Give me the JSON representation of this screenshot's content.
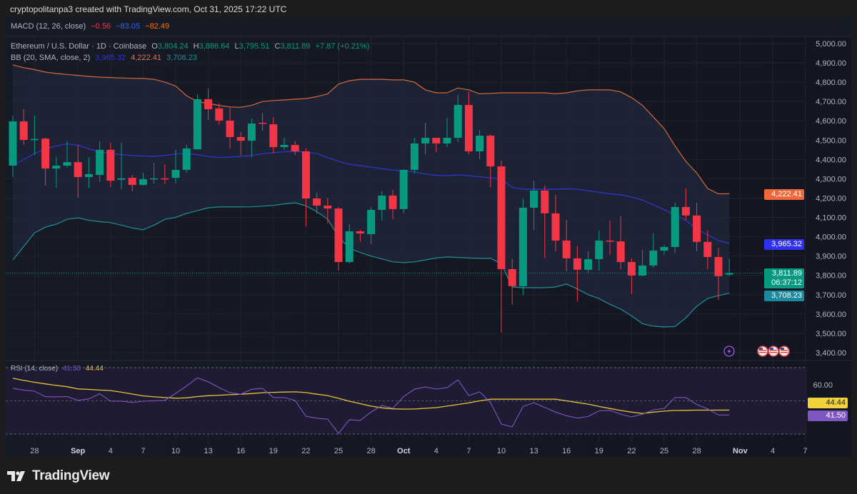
{
  "attribution": "cryptopolitanpa3 created with TradingView.com, Oct 31, 2025 17:22 UTC",
  "macd_legend": {
    "label": "MACD (12, 26, close)",
    "macd": "−0.56",
    "signal": "−83.05",
    "hist": "−82.49"
  },
  "symbol_legend": {
    "label": "Ethereum / U.S. Dollar · 1D · Coinbase",
    "o_label": "O",
    "o": "3,804.24",
    "h_label": "H",
    "h": "3,886.64",
    "l_label": "L",
    "l": "3,795.51",
    "c_label": "C",
    "c": "3,811.89",
    "change": "+7.87 (+0.21%)"
  },
  "bb_legend": {
    "label": "BB (20, SMA, close, 2)",
    "basis": "3,965.32",
    "upper": "4,222.41",
    "lower": "3,708.23"
  },
  "rsi_legend": {
    "label": "RSI (14, close)",
    "rsi": "41.50",
    "ma": "44.44"
  },
  "price_badges": {
    "upper": "4,222.41",
    "basis": "3,965.32",
    "last": "3,811.89",
    "countdown": "06:37:12",
    "lower": "3,708.23"
  },
  "rsi_badges": {
    "ma": "44.44",
    "rsi": "41.50"
  },
  "rsi_axis_label": "60.00",
  "logo_text": "TradingView",
  "colors": {
    "up": "#089981",
    "down": "#f23645",
    "bb_upper": "#d2693f",
    "bb_basis": "#3434d8",
    "bb_lower": "#1f8f97",
    "rsi": "#7e57c2",
    "rsi_ma": "#e5c33a"
  },
  "icons": [
    "lightning-icon",
    "us-flag-icon",
    "us-flag-icon",
    "us-flag-icon"
  ],
  "chart_data": {
    "type": "candlestick",
    "title": "Ethereum / U.S. Dollar · 1D · Coinbase",
    "ylim": [
      3400,
      5000
    ],
    "y_ticks": [
      "5,000.00",
      "4,900.00",
      "4,800.00",
      "4,700.00",
      "4,600.00",
      "4,500.00",
      "4,400.00",
      "4,300.00",
      "4,200.00",
      "4,100.00",
      "4,000.00",
      "3,900.00",
      "3,800.00",
      "3,700.00",
      "3,600.00",
      "3,500.00",
      "3,400.00"
    ],
    "x_ticks": [
      {
        "label": "28",
        "day": 2
      },
      {
        "label": "Sep",
        "day": 6
      },
      {
        "label": "4",
        "day": 9
      },
      {
        "label": "7",
        "day": 12
      },
      {
        "label": "10",
        "day": 15
      },
      {
        "label": "13",
        "day": 18
      },
      {
        "label": "16",
        "day": 21
      },
      {
        "label": "19",
        "day": 24
      },
      {
        "label": "22",
        "day": 27
      },
      {
        "label": "25",
        "day": 30
      },
      {
        "label": "28",
        "day": 33
      },
      {
        "label": "Oct",
        "day": 36
      },
      {
        "label": "4",
        "day": 39
      },
      {
        "label": "7",
        "day": 42
      },
      {
        "label": "10",
        "day": 45
      },
      {
        "label": "13",
        "day": 48
      },
      {
        "label": "16",
        "day": 51
      },
      {
        "label": "19",
        "day": 54
      },
      {
        "label": "22",
        "day": 57
      },
      {
        "label": "25",
        "day": 60
      },
      {
        "label": "28",
        "day": 63
      },
      {
        "label": "Nov",
        "day": 67
      },
      {
        "label": "4",
        "day": 70
      },
      {
        "label": "7",
        "day": 73
      }
    ],
    "ohlc": [
      [
        4368,
        4627,
        4309,
        4597
      ],
      [
        4597,
        4660,
        4475,
        4501
      ],
      [
        4500,
        4627,
        4424,
        4506
      ],
      [
        4508,
        4512,
        4265,
        4353
      ],
      [
        4353,
        4412,
        4253,
        4368
      ],
      [
        4368,
        4494,
        4357,
        4386
      ],
      [
        4386,
        4475,
        4202,
        4309
      ],
      [
        4309,
        4412,
        4253,
        4324
      ],
      [
        4320,
        4494,
        4283,
        4450
      ],
      [
        4450,
        4487,
        4257,
        4290
      ],
      [
        4295,
        4487,
        4246,
        4302
      ],
      [
        4305,
        4320,
        4235,
        4268
      ],
      [
        4268,
        4331,
        4265,
        4298
      ],
      [
        4298,
        4383,
        4276,
        4302
      ],
      [
        4302,
        4375,
        4272,
        4300
      ],
      [
        4305,
        4450,
        4276,
        4346
      ],
      [
        4346,
        4475,
        4331,
        4457
      ],
      [
        4453,
        4738,
        4450,
        4712
      ],
      [
        4712,
        4767,
        4605,
        4660
      ],
      [
        4664,
        4690,
        4579,
        4601
      ],
      [
        4601,
        4671,
        4457,
        4516
      ],
      [
        4516,
        4542,
        4420,
        4497
      ],
      [
        4497,
        4612,
        4412,
        4586
      ],
      [
        4590,
        4641,
        4549,
        4586
      ],
      [
        4582,
        4619,
        4431,
        4464
      ],
      [
        4464,
        4512,
        4450,
        4475
      ],
      [
        4475,
        4497,
        4424,
        4442
      ],
      [
        4442,
        4457,
        4054,
        4198
      ],
      [
        4198,
        4228,
        4117,
        4161
      ],
      [
        4161,
        4202,
        4069,
        4146
      ],
      [
        4146,
        4154,
        3825,
        3869
      ],
      [
        3869,
        4065,
        3862,
        4028
      ],
      [
        4028,
        4036,
        3973,
        4017
      ],
      [
        4013,
        4154,
        3962,
        4139
      ],
      [
        4139,
        4235,
        4084,
        4213
      ],
      [
        4213,
        4243,
        4091,
        4143
      ],
      [
        4143,
        4350,
        4121,
        4346
      ],
      [
        4346,
        4512,
        4327,
        4483
      ],
      [
        4483,
        4590,
        4427,
        4512
      ],
      [
        4512,
        4512,
        4438,
        4483
      ],
      [
        4483,
        4616,
        4464,
        4512
      ],
      [
        4512,
        4734,
        4490,
        4682
      ],
      [
        4682,
        4749,
        4427,
        4442
      ],
      [
        4442,
        4553,
        4401,
        4523
      ],
      [
        4523,
        4531,
        4257,
        4364
      ],
      [
        4364,
        4394,
        3504,
        3832
      ],
      [
        3832,
        3884,
        3648,
        3744
      ],
      [
        3744,
        4198,
        3696,
        4150
      ],
      [
        4150,
        4291,
        4036,
        4239
      ],
      [
        4239,
        4265,
        3888,
        4121
      ],
      [
        4121,
        4217,
        3925,
        3980
      ],
      [
        3980,
        4087,
        3821,
        3888
      ],
      [
        3888,
        3951,
        3666,
        3829
      ],
      [
        3829,
        3925,
        3814,
        3884
      ],
      [
        3884,
        4032,
        3825,
        3980
      ],
      [
        3980,
        4084,
        3906,
        3976
      ],
      [
        3976,
        4106,
        3832,
        3869
      ],
      [
        3869,
        3888,
        3703,
        3799
      ],
      [
        3799,
        3932,
        3796,
        3851
      ],
      [
        3851,
        4017,
        3840,
        3928
      ],
      [
        3928,
        3958,
        3906,
        3947
      ],
      [
        3947,
        4176,
        3914,
        4154
      ],
      [
        4154,
        4250,
        4087,
        4110
      ],
      [
        4110,
        4176,
        3925,
        3973
      ],
      [
        3973,
        4032,
        3832,
        3895
      ],
      [
        3895,
        3943,
        3674,
        3796
      ],
      [
        3804,
        3887,
        3796,
        3812
      ]
    ],
    "bb_upper": [
      4890,
      4875,
      4865,
      4852,
      4845,
      4840,
      4835,
      4830,
      4826,
      4824,
      4822,
      4820,
      4819,
      4815,
      4800,
      4780,
      4730,
      4700,
      4690,
      4680,
      4672,
      4670,
      4680,
      4700,
      4705,
      4708,
      4712,
      4715,
      4725,
      4740,
      4790,
      4808,
      4815,
      4815,
      4815,
      4812,
      4812,
      4800,
      4760,
      4745,
      4745,
      4770,
      4760,
      4740,
      4742,
      4745,
      4745,
      4745,
      4745,
      4745,
      4740,
      4745,
      4755,
      4760,
      4760,
      4760,
      4750,
      4720,
      4680,
      4620,
      4560,
      4470,
      4390,
      4330,
      4250,
      4222,
      4222.41
    ],
    "bb_basis": [
      4370,
      4400,
      4430,
      4455,
      4470,
      4480,
      4475,
      4455,
      4440,
      4430,
      4425,
      4420,
      4418,
      4416,
      4420,
      4428,
      4432,
      4425,
      4415,
      4410,
      4412,
      4416,
      4420,
      4430,
      4435,
      4440,
      4442,
      4438,
      4430,
      4410,
      4390,
      4375,
      4368,
      4360,
      4352,
      4345,
      4340,
      4335,
      4325,
      4318,
      4316,
      4320,
      4316,
      4310,
      4305,
      4300,
      4255,
      4246,
      4246,
      4246,
      4246,
      4248,
      4246,
      4238,
      4230,
      4222,
      4217,
      4205,
      4190,
      4165,
      4140,
      4115,
      4085,
      4040,
      4010,
      3980,
      3965.32
    ],
    "bb_lower": [
      3880,
      3950,
      4020,
      4050,
      4065,
      4090,
      4098,
      4085,
      4078,
      4073,
      4060,
      4045,
      4036,
      4060,
      4090,
      4100,
      4121,
      4135,
      4150,
      4154,
      4154,
      4154,
      4155,
      4158,
      4162,
      4170,
      4176,
      4160,
      4130,
      4091,
      4000,
      3940,
      3918,
      3900,
      3885,
      3870,
      3866,
      3870,
      3880,
      3890,
      3895,
      3893,
      3890,
      3888,
      3888,
      3860,
      3740,
      3736,
      3736,
      3736,
      3740,
      3755,
      3730,
      3700,
      3680,
      3650,
      3625,
      3590,
      3550,
      3537,
      3533,
      3535,
      3580,
      3640,
      3680,
      3695,
      3708.23
    ],
    "last_price": 3811.89,
    "rsi": {
      "ylim": [
        30,
        70
      ],
      "rsi": [
        57.5,
        56.5,
        55.8,
        52.5,
        52.4,
        52.6,
        50.3,
        51.2,
        54.3,
        49.8,
        49.8,
        49,
        49.8,
        50,
        50.3,
        54.5,
        59,
        63.8,
        61.5,
        58,
        54.9,
        54,
        57,
        57.5,
        52,
        52,
        50.2,
        40.7,
        39.5,
        39,
        30.4,
        38.6,
        38.2,
        43.3,
        47.2,
        45.5,
        52.6,
        57,
        58.4,
        57.1,
        57.9,
        62.7,
        53.2,
        55.4,
        49,
        36,
        34.3,
        46.6,
        48.9,
        46,
        43.2,
        41,
        39.6,
        40.6,
        44,
        44.3,
        42,
        40.3,
        42,
        44.6,
        45.4,
        52,
        52,
        47.8,
        45.2,
        41.5,
        41.5
      ],
      "ma": [
        63.6,
        62.3,
        61.2,
        60.2,
        59.3,
        58.5,
        57.2,
        56.9,
        56.5,
        56.2,
        55.2,
        54.1,
        53,
        52.4,
        52,
        51.6,
        51.8,
        52.6,
        53.1,
        53.4,
        53.7,
        54,
        54.4,
        54.9,
        55.1,
        55.3,
        55.4,
        55,
        54,
        53.2,
        51.5,
        49.8,
        48.3,
        46.8,
        45.8,
        45.2,
        45,
        45.1,
        45.5,
        45.9,
        46.8,
        47.8,
        48.8,
        50,
        51,
        51,
        51,
        51,
        51,
        51,
        51,
        50,
        49,
        48,
        46.6,
        45.4,
        44.2,
        43.2,
        42.4,
        43.2,
        43.8,
        44.2,
        44.3,
        44.4,
        44.4,
        44.4,
        44.44
      ]
    }
  }
}
